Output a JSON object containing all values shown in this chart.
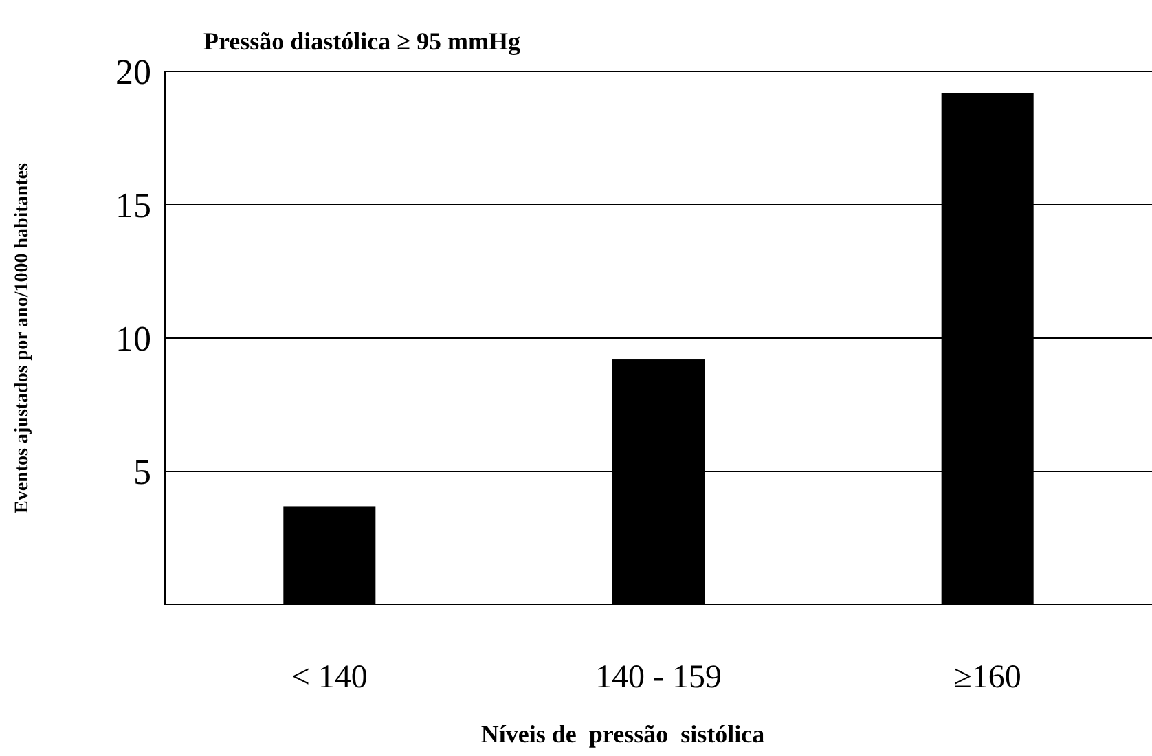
{
  "chart_data": {
    "type": "bar",
    "title": "Pressão diastólica ≥ 95 mmHg",
    "xlabel": "Níveis de  pressão  sistólica",
    "ylabel": "Eventos ajustados por ano/1000 habitantes",
    "categories": [
      "< 140",
      "140 - 159",
      "≥160"
    ],
    "values": [
      3.7,
      9.2,
      19.2
    ],
    "color": "#000000",
    "ylim": [
      0,
      20
    ],
    "yticks": [
      5,
      10,
      15,
      20
    ],
    "grid": "y"
  }
}
